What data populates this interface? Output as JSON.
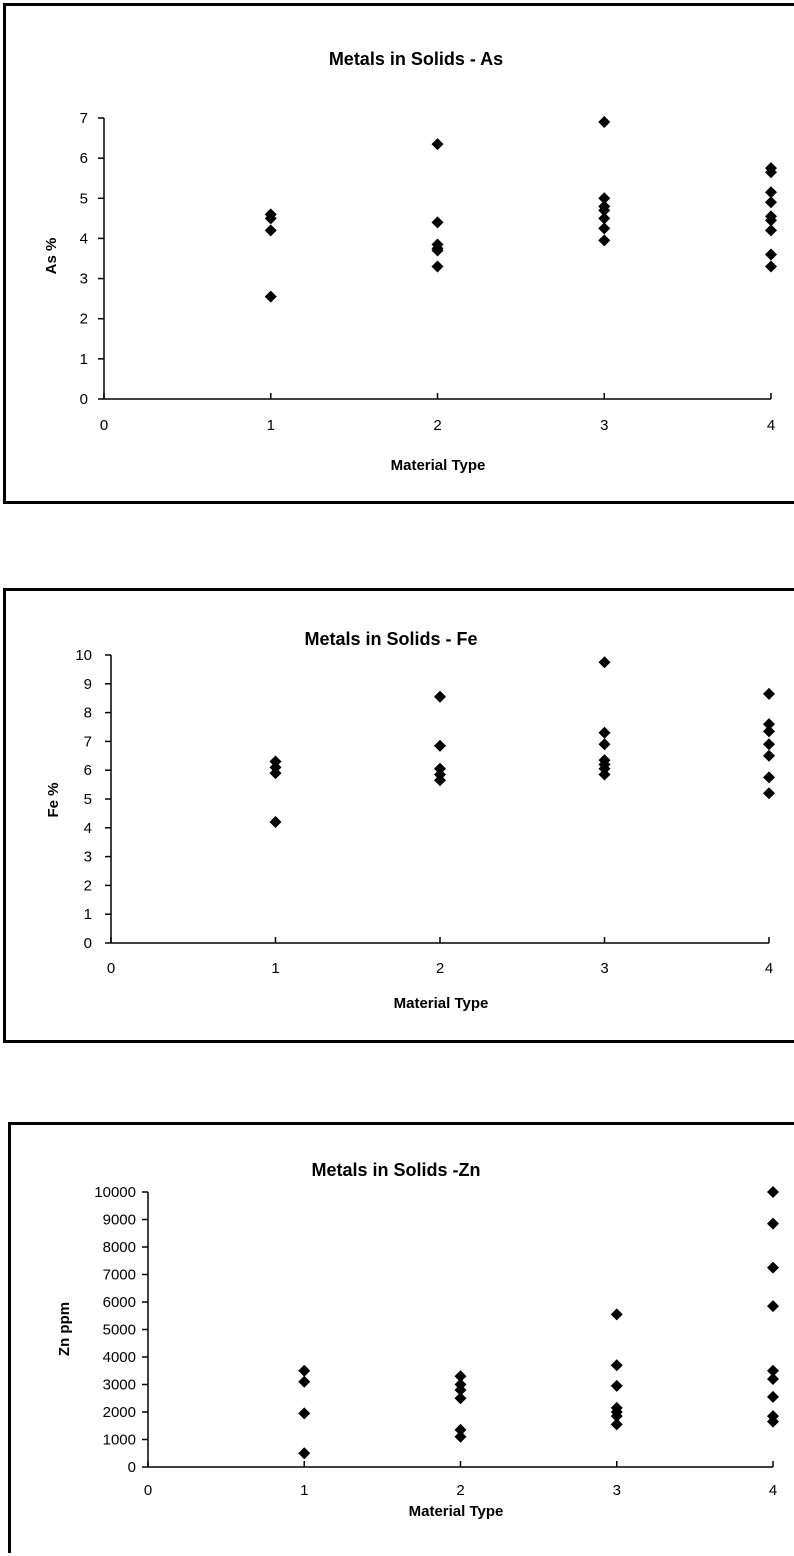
{
  "chart_data": [
    {
      "type": "scatter",
      "title": "Metals in Solids - As",
      "xlabel": "Material Type",
      "ylabel": "As %",
      "xlim": [
        0,
        4
      ],
      "ylim": [
        0,
        7
      ],
      "x_ticks": [
        "0",
        "1",
        "2",
        "3",
        "4"
      ],
      "y_ticks": [
        "0",
        "1",
        "2",
        "3",
        "4",
        "5",
        "6",
        "7"
      ],
      "marker": "diamond",
      "grid": false,
      "color": "#000000",
      "points": [
        {
          "x": 1,
          "y": 4.6
        },
        {
          "x": 1,
          "y": 4.5
        },
        {
          "x": 1,
          "y": 4.2
        },
        {
          "x": 1,
          "y": 2.55
        },
        {
          "x": 2,
          "y": 6.35
        },
        {
          "x": 2,
          "y": 4.4
        },
        {
          "x": 2,
          "y": 3.85
        },
        {
          "x": 2,
          "y": 3.75
        },
        {
          "x": 2,
          "y": 3.7
        },
        {
          "x": 2,
          "y": 3.3
        },
        {
          "x": 3,
          "y": 6.9
        },
        {
          "x": 3,
          "y": 5.0
        },
        {
          "x": 3,
          "y": 4.8
        },
        {
          "x": 3,
          "y": 4.7
        },
        {
          "x": 3,
          "y": 4.5
        },
        {
          "x": 3,
          "y": 4.25
        },
        {
          "x": 3,
          "y": 3.95
        },
        {
          "x": 4,
          "y": 5.75
        },
        {
          "x": 4,
          "y": 5.65
        },
        {
          "x": 4,
          "y": 5.15
        },
        {
          "x": 4,
          "y": 4.9
        },
        {
          "x": 4,
          "y": 4.55
        },
        {
          "x": 4,
          "y": 4.45
        },
        {
          "x": 4,
          "y": 4.2
        },
        {
          "x": 4,
          "y": 3.6
        },
        {
          "x": 4,
          "y": 3.3
        }
      ]
    },
    {
      "type": "scatter",
      "title": "Metals in Solids - Fe",
      "xlabel": "Material Type",
      "ylabel": "Fe %",
      "xlim": [
        0,
        4
      ],
      "ylim": [
        0,
        10
      ],
      "x_ticks": [
        "0",
        "1",
        "2",
        "3",
        "4"
      ],
      "y_ticks": [
        "0",
        "1",
        "2",
        "3",
        "4",
        "5",
        "6",
        "7",
        "8",
        "9",
        "10"
      ],
      "marker": "diamond",
      "grid": false,
      "color": "#000000",
      "points": [
        {
          "x": 1,
          "y": 6.3
        },
        {
          "x": 1,
          "y": 6.1
        },
        {
          "x": 1,
          "y": 5.9
        },
        {
          "x": 1,
          "y": 4.2
        },
        {
          "x": 2,
          "y": 8.55
        },
        {
          "x": 2,
          "y": 6.85
        },
        {
          "x": 2,
          "y": 6.05
        },
        {
          "x": 2,
          "y": 5.85
        },
        {
          "x": 2,
          "y": 5.65
        },
        {
          "x": 3,
          "y": 9.75
        },
        {
          "x": 3,
          "y": 7.3
        },
        {
          "x": 3,
          "y": 6.9
        },
        {
          "x": 3,
          "y": 6.35
        },
        {
          "x": 3,
          "y": 6.2
        },
        {
          "x": 3,
          "y": 6.05
        },
        {
          "x": 3,
          "y": 5.85
        },
        {
          "x": 4,
          "y": 8.65
        },
        {
          "x": 4,
          "y": 7.6
        },
        {
          "x": 4,
          "y": 7.35
        },
        {
          "x": 4,
          "y": 6.9
        },
        {
          "x": 4,
          "y": 6.5
        },
        {
          "x": 4,
          "y": 5.75
        },
        {
          "x": 4,
          "y": 5.2
        }
      ]
    },
    {
      "type": "scatter",
      "title": "Metals in Solids -Zn",
      "xlabel": "Material Type",
      "ylabel": "Zn ppm",
      "xlim": [
        0,
        4
      ],
      "ylim": [
        0,
        10000
      ],
      "x_ticks": [
        "0",
        "1",
        "2",
        "3",
        "4"
      ],
      "y_ticks": [
        "0",
        "1000",
        "2000",
        "3000",
        "4000",
        "5000",
        "6000",
        "7000",
        "8000",
        "9000",
        "10000"
      ],
      "marker": "diamond",
      "grid": false,
      "color": "#000000",
      "points": [
        {
          "x": 1,
          "y": 3500
        },
        {
          "x": 1,
          "y": 3100
        },
        {
          "x": 1,
          "y": 1950
        },
        {
          "x": 1,
          "y": 500
        },
        {
          "x": 2,
          "y": 3300
        },
        {
          "x": 2,
          "y": 3000
        },
        {
          "x": 2,
          "y": 2800
        },
        {
          "x": 2,
          "y": 2500
        },
        {
          "x": 2,
          "y": 1350
        },
        {
          "x": 2,
          "y": 1100
        },
        {
          "x": 3,
          "y": 5550
        },
        {
          "x": 3,
          "y": 3700
        },
        {
          "x": 3,
          "y": 2950
        },
        {
          "x": 3,
          "y": 2150
        },
        {
          "x": 3,
          "y": 2000
        },
        {
          "x": 3,
          "y": 1850
        },
        {
          "x": 3,
          "y": 1550
        },
        {
          "x": 4,
          "y": 10000
        },
        {
          "x": 4,
          "y": 8850
        },
        {
          "x": 4,
          "y": 7250
        },
        {
          "x": 4,
          "y": 5850
        },
        {
          "x": 4,
          "y": 3500
        },
        {
          "x": 4,
          "y": 3200
        },
        {
          "x": 4,
          "y": 2550
        },
        {
          "x": 4,
          "y": 1850
        },
        {
          "x": 4,
          "y": 1650
        }
      ]
    }
  ]
}
